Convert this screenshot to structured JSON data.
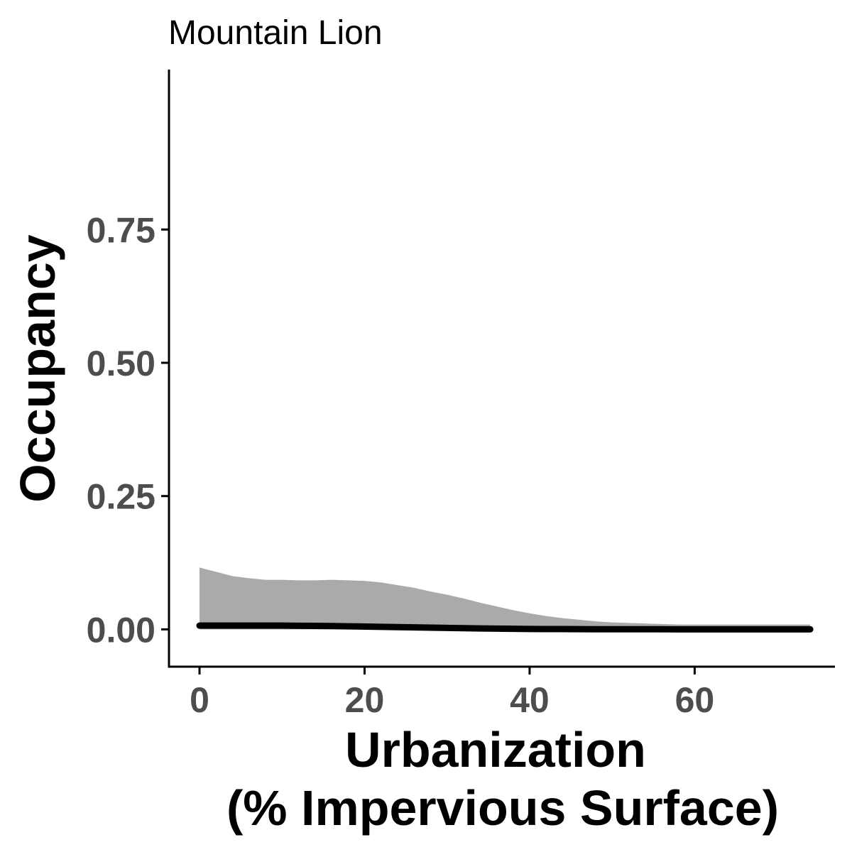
{
  "chart_data": {
    "type": "area",
    "title": "Mountain Lion",
    "xlabel": [
      "Urbanization",
      "(% Impervious Surface)"
    ],
    "ylabel": "Occupancy",
    "xlim": [
      -3.7,
      77
    ],
    "ylim": [
      -0.07,
      1.05
    ],
    "x_ticks": [
      0,
      20,
      40,
      60
    ],
    "y_ticks": [
      0.0,
      0.25,
      0.5,
      0.75
    ],
    "x_tick_labels": [
      "0",
      "20",
      "40",
      "60"
    ],
    "y_tick_labels": [
      "0.00",
      "0.25",
      "0.50",
      "0.75"
    ],
    "grid": false,
    "series": [
      {
        "x": [
          0,
          2,
          4,
          6,
          8,
          10,
          12,
          14,
          16,
          18,
          20,
          22,
          24,
          26,
          28,
          30,
          32,
          34,
          36,
          38,
          40,
          42,
          44,
          46,
          48,
          50,
          52,
          54,
          56,
          58,
          60,
          62,
          64,
          66,
          68,
          70,
          72,
          74
        ],
        "mean": [
          0.007,
          0.007,
          0.007,
          0.007,
          0.007,
          0.007,
          0.0068,
          0.0065,
          0.0062,
          0.0058,
          0.0053,
          0.0048,
          0.0043,
          0.0038,
          0.0032,
          0.0027,
          0.0022,
          0.0018,
          0.0014,
          0.0011,
          0.0008,
          0.0006,
          0.0005,
          0.0004,
          0.0003,
          0.0003,
          0.0002,
          0.0002,
          0.0002,
          0.0001,
          0.0001,
          0.0001,
          0.0001,
          0.0001,
          0.0001,
          0.0001,
          0.0001,
          0.0001
        ],
        "lower": [
          0,
          0,
          0,
          0,
          0,
          0,
          0,
          0,
          0,
          0,
          0,
          0,
          0,
          0,
          0,
          0,
          0,
          0,
          0,
          0,
          0,
          0,
          0,
          0,
          0,
          0,
          0,
          0,
          0,
          0,
          0,
          0,
          0,
          0,
          0,
          0,
          0,
          0
        ],
        "upper": [
          0.116,
          0.108,
          0.1,
          0.096,
          0.093,
          0.093,
          0.092,
          0.092,
          0.093,
          0.092,
          0.091,
          0.088,
          0.083,
          0.078,
          0.071,
          0.065,
          0.058,
          0.05,
          0.043,
          0.036,
          0.03,
          0.025,
          0.021,
          0.018,
          0.015,
          0.013,
          0.012,
          0.011,
          0.01,
          0.009,
          0.009,
          0.009,
          0.009,
          0.009,
          0.009,
          0.009,
          0.009,
          0.009
        ]
      }
    ],
    "colors": {
      "ribbon": "#aaaaaa",
      "line": "#000000",
      "axis": "#000000",
      "tick_label": "#4d4d4d"
    }
  }
}
